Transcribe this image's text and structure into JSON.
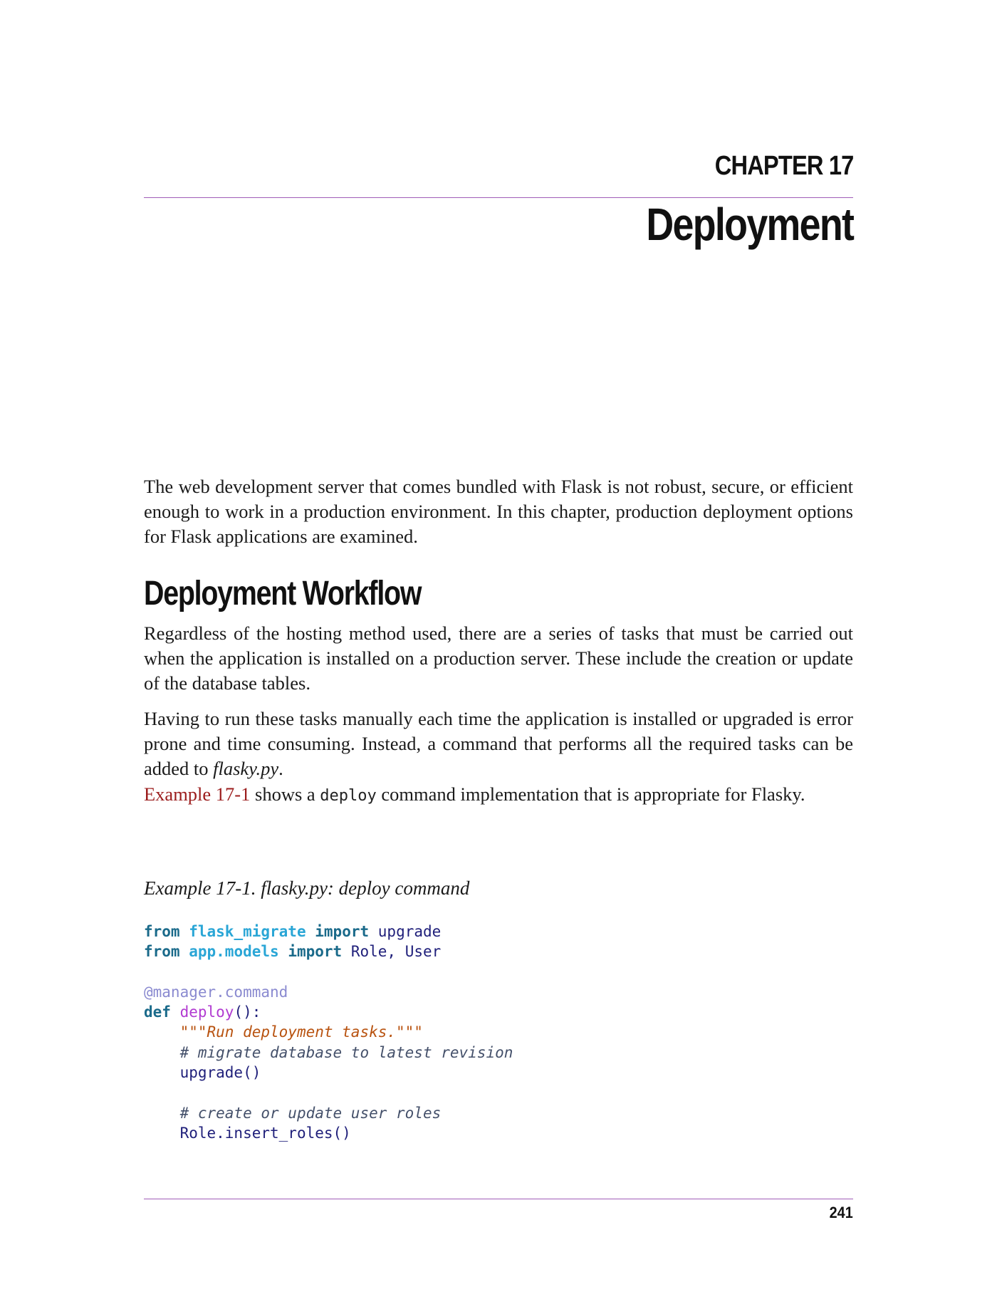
{
  "chapter": {
    "label": "CHAPTER 17",
    "title": "Deployment"
  },
  "intro": "The web development server that comes bundled with Flask is not robust, secure, or efficient enough to work in a production environment. In this chapter, production deployment options for Flask applications are examined.",
  "section": {
    "title": "Deployment Workflow",
    "para1": "Regardless of the hosting method used, there are a series of tasks that must be carried out when the application is installed on a production server. These include the cre­ation or update of the database tables.",
    "para2_before": "Having to run these tasks manually each time the application is installed or upgraded is error prone and time consuming. Instead, a command that performs all the required tasks can be added to ",
    "para2_file": "flasky.py",
    "para2_after": ".",
    "para3_xref": "Example 17-1",
    "para3_mid": " shows a ",
    "para3_code": "deploy",
    "para3_end": " command implementation that is appropriate for Flasky."
  },
  "example": {
    "caption": "Example 17-1. flasky.py: deploy command",
    "code": {
      "l1_from": "from",
      "l1_mod": "flask_migrate",
      "l1_import": "import",
      "l1_name": "upgrade",
      "l2_from": "from",
      "l2_mod": "app.models",
      "l2_import": "import",
      "l2_name": "Role, User",
      "l4_deco": "@manager.command",
      "l5_def": "def",
      "l5_fn": "deploy",
      "l5_rest": "():",
      "l6_str": "\"\"\"Run deployment tasks.\"\"\"",
      "l7_cmt": "# migrate database to latest revision",
      "l8_call": "upgrade()",
      "l10_cmt": "# create or update user roles",
      "l11_call": "Role.insert_roles()"
    }
  },
  "footer": {
    "page_number": "241"
  },
  "colors": {
    "rule": "#a05db8",
    "xref": "#9b1c1c",
    "keyword": "#1a6a8a",
    "module": "#2aa6d6",
    "function": "#b13ad1",
    "string": "#b8520f"
  }
}
